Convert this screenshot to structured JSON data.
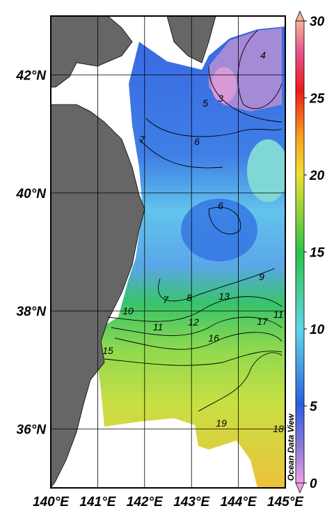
{
  "map": {
    "xlim": [
      140,
      145
    ],
    "ylim": [
      35,
      43
    ],
    "xticks": [
      {
        "value": 140,
        "label": "140°E"
      },
      {
        "value": 141,
        "label": "141°E"
      },
      {
        "value": 142,
        "label": "142°E"
      },
      {
        "value": 143,
        "label": "143°E"
      },
      {
        "value": 144,
        "label": "144°E"
      },
      {
        "value": 145,
        "label": "145°E"
      }
    ],
    "yticks": [
      {
        "value": 36,
        "label": "36°N"
      },
      {
        "value": 38,
        "label": "38°N"
      },
      {
        "value": 40,
        "label": "40°N"
      },
      {
        "value": 42,
        "label": "42°N"
      }
    ],
    "colorbar": {
      "lim": [
        0,
        30
      ],
      "ticks": [
        0,
        5,
        10,
        15,
        20,
        25,
        30
      ]
    },
    "contour_labels": [
      4,
      3,
      5,
      6,
      7,
      6,
      7,
      8,
      9,
      13,
      10,
      11,
      12,
      16,
      17,
      11,
      15,
      19,
      18
    ],
    "watermark": "Ocean Data View"
  }
}
